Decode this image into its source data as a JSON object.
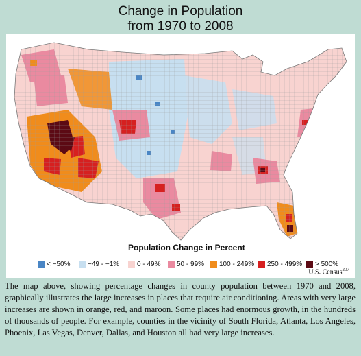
{
  "title": {
    "line1": "Change in Population",
    "line2": "from 1970 to 2008"
  },
  "legend": {
    "title": "Population Change in Percent",
    "items": [
      {
        "label": "< −50%",
        "color": "#4a86c5"
      },
      {
        "label": "−49 - −1%",
        "color": "#c7dff0"
      },
      {
        "label": "0 - 49%",
        "color": "#f8d3d0"
      },
      {
        "label": "50 - 99%",
        "color": "#ea8aa0"
      },
      {
        "label": "100 - 249%",
        "color": "#f08c1c"
      },
      {
        "label": "250 - 499%",
        "color": "#d62020"
      },
      {
        "label": "> 500%",
        "color": "#5c0a14"
      }
    ]
  },
  "source": {
    "text": "U.S. Census",
    "ref": "207"
  },
  "caption": "The map above, showing percentage changes in county population between 1970 and 2008, graphically illustrates the large increases in places that require air conditioning. Areas with very large increases are shown in orange, red, and maroon. Some places had enormous growth, in the hundreds of thousands of people. For example, counties in the vicinity of South Florida, Atlanta, Los Angeles, Phoenix, Las Vegas, Denver, Dallas, and Houston all had very large increases.",
  "colors": {
    "background": "#bfdcd3",
    "panel": "#ffffff"
  }
}
